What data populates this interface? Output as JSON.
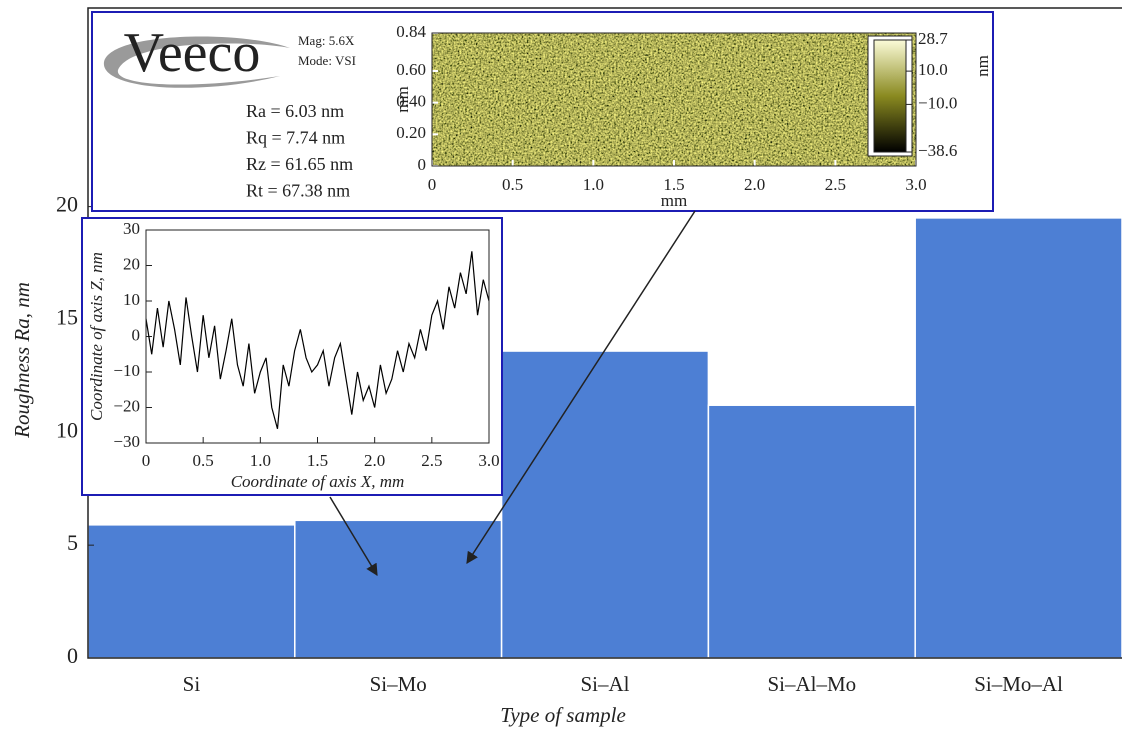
{
  "chart_data": [
    {
      "type": "bar",
      "categories": [
        "Si",
        "Si–Mo",
        "Si–Al",
        "Si–Al–Mo",
        "Si–Mo–Al"
      ],
      "values": [
        5.9,
        6.1,
        13.6,
        11.2,
        19.5
      ],
      "color": "#4d7fd4",
      "ylim": [
        0,
        28.8
      ],
      "yticks": [
        0,
        5,
        10,
        15,
        20
      ],
      "y_label": "Roughness Ra, nm",
      "x_label": "Type of sample"
    },
    {
      "type": "line",
      "x": [
        0,
        0.05,
        0.1,
        0.15,
        0.2,
        0.25,
        0.3,
        0.35,
        0.4,
        0.45,
        0.5,
        0.55,
        0.6,
        0.65,
        0.7,
        0.75,
        0.8,
        0.85,
        0.9,
        0.95,
        1,
        1.05,
        1.1,
        1.15,
        1.2,
        1.25,
        1.3,
        1.35,
        1.4,
        1.45,
        1.5,
        1.55,
        1.6,
        1.65,
        1.7,
        1.75,
        1.8,
        1.85,
        1.9,
        1.95,
        2,
        2.05,
        2.1,
        2.15,
        2.2,
        2.25,
        2.3,
        2.35,
        2.4,
        2.45,
        2.5,
        2.55,
        2.6,
        2.65,
        2.7,
        2.75,
        2.8,
        2.85,
        2.9,
        2.95,
        3
      ],
      "values": [
        5,
        -5,
        8,
        -3,
        10,
        2,
        -8,
        11,
        0,
        -10,
        6,
        -6,
        3,
        -12,
        -4,
        5,
        -8,
        -14,
        -2,
        -16,
        -10,
        -6,
        -20,
        -26,
        -8,
        -14,
        -4,
        2,
        -6,
        -10,
        -8,
        -4,
        -14,
        -6,
        -2,
        -12,
        -22,
        -10,
        -18,
        -14,
        -20,
        -8,
        -16,
        -12,
        -4,
        -10,
        -2,
        -6,
        2,
        -4,
        6,
        10,
        2,
        14,
        8,
        18,
        12,
        24,
        6,
        16,
        10
      ],
      "color": "#000000",
      "xlim": [
        0,
        3
      ],
      "xticks": [
        0,
        0.5,
        {
          "value": 1,
          "label": "1.0"
        },
        1.5,
        {
          "value": 2,
          "label": "2.0"
        },
        2.5,
        {
          "value": 3,
          "label": "3.0"
        }
      ],
      "ylim": [
        -30,
        30
      ],
      "yticks": [
        {
          "value": -30,
          "label": "−30"
        },
        {
          "value": -20,
          "label": "−20"
        },
        {
          "value": -10,
          "label": "−10"
        },
        0,
        10,
        20,
        30
      ],
      "x_label": "Coordinate of axis X, mm",
      "y_label": "Coordinate of axis Z, nm"
    },
    {
      "type": "image",
      "logo": "Veeco",
      "magnification": "Mag: 5.6X",
      "mode": "Mode: VSI",
      "parameters": [
        "Ra = 6.03 nm",
        "Rq = 7.74 nm",
        "Rz = 61.65 nm",
        "Rt = 67.38 nm"
      ],
      "xlim": [
        0,
        3
      ],
      "xticks": [
        0,
        0.5,
        {
          "value": 1,
          "label": "1.0"
        },
        1.5,
        {
          "value": 2,
          "label": "2.0"
        },
        2.5,
        {
          "value": 3,
          "label": "3.0"
        }
      ],
      "ylim": [
        0,
        0.84
      ],
      "yticks": [
        0,
        {
          "value": 0.2,
          "label": "0.20"
        },
        {
          "value": 0.4,
          "label": "0.40"
        },
        {
          "value": 0.6,
          "label": "0.60"
        },
        0.84
      ],
      "x_label": "mm",
      "y_label": "mm",
      "colorbar": {
        "lim": [
          -38.6,
          28.7
        ],
        "ticks": [
          28.7,
          {
            "value": 10,
            "label": "10.0"
          },
          {
            "value": -10,
            "label": "−10.0"
          },
          {
            "value": -38.6,
            "label": "−38.6"
          }
        ],
        "label": "nm"
      }
    }
  ]
}
